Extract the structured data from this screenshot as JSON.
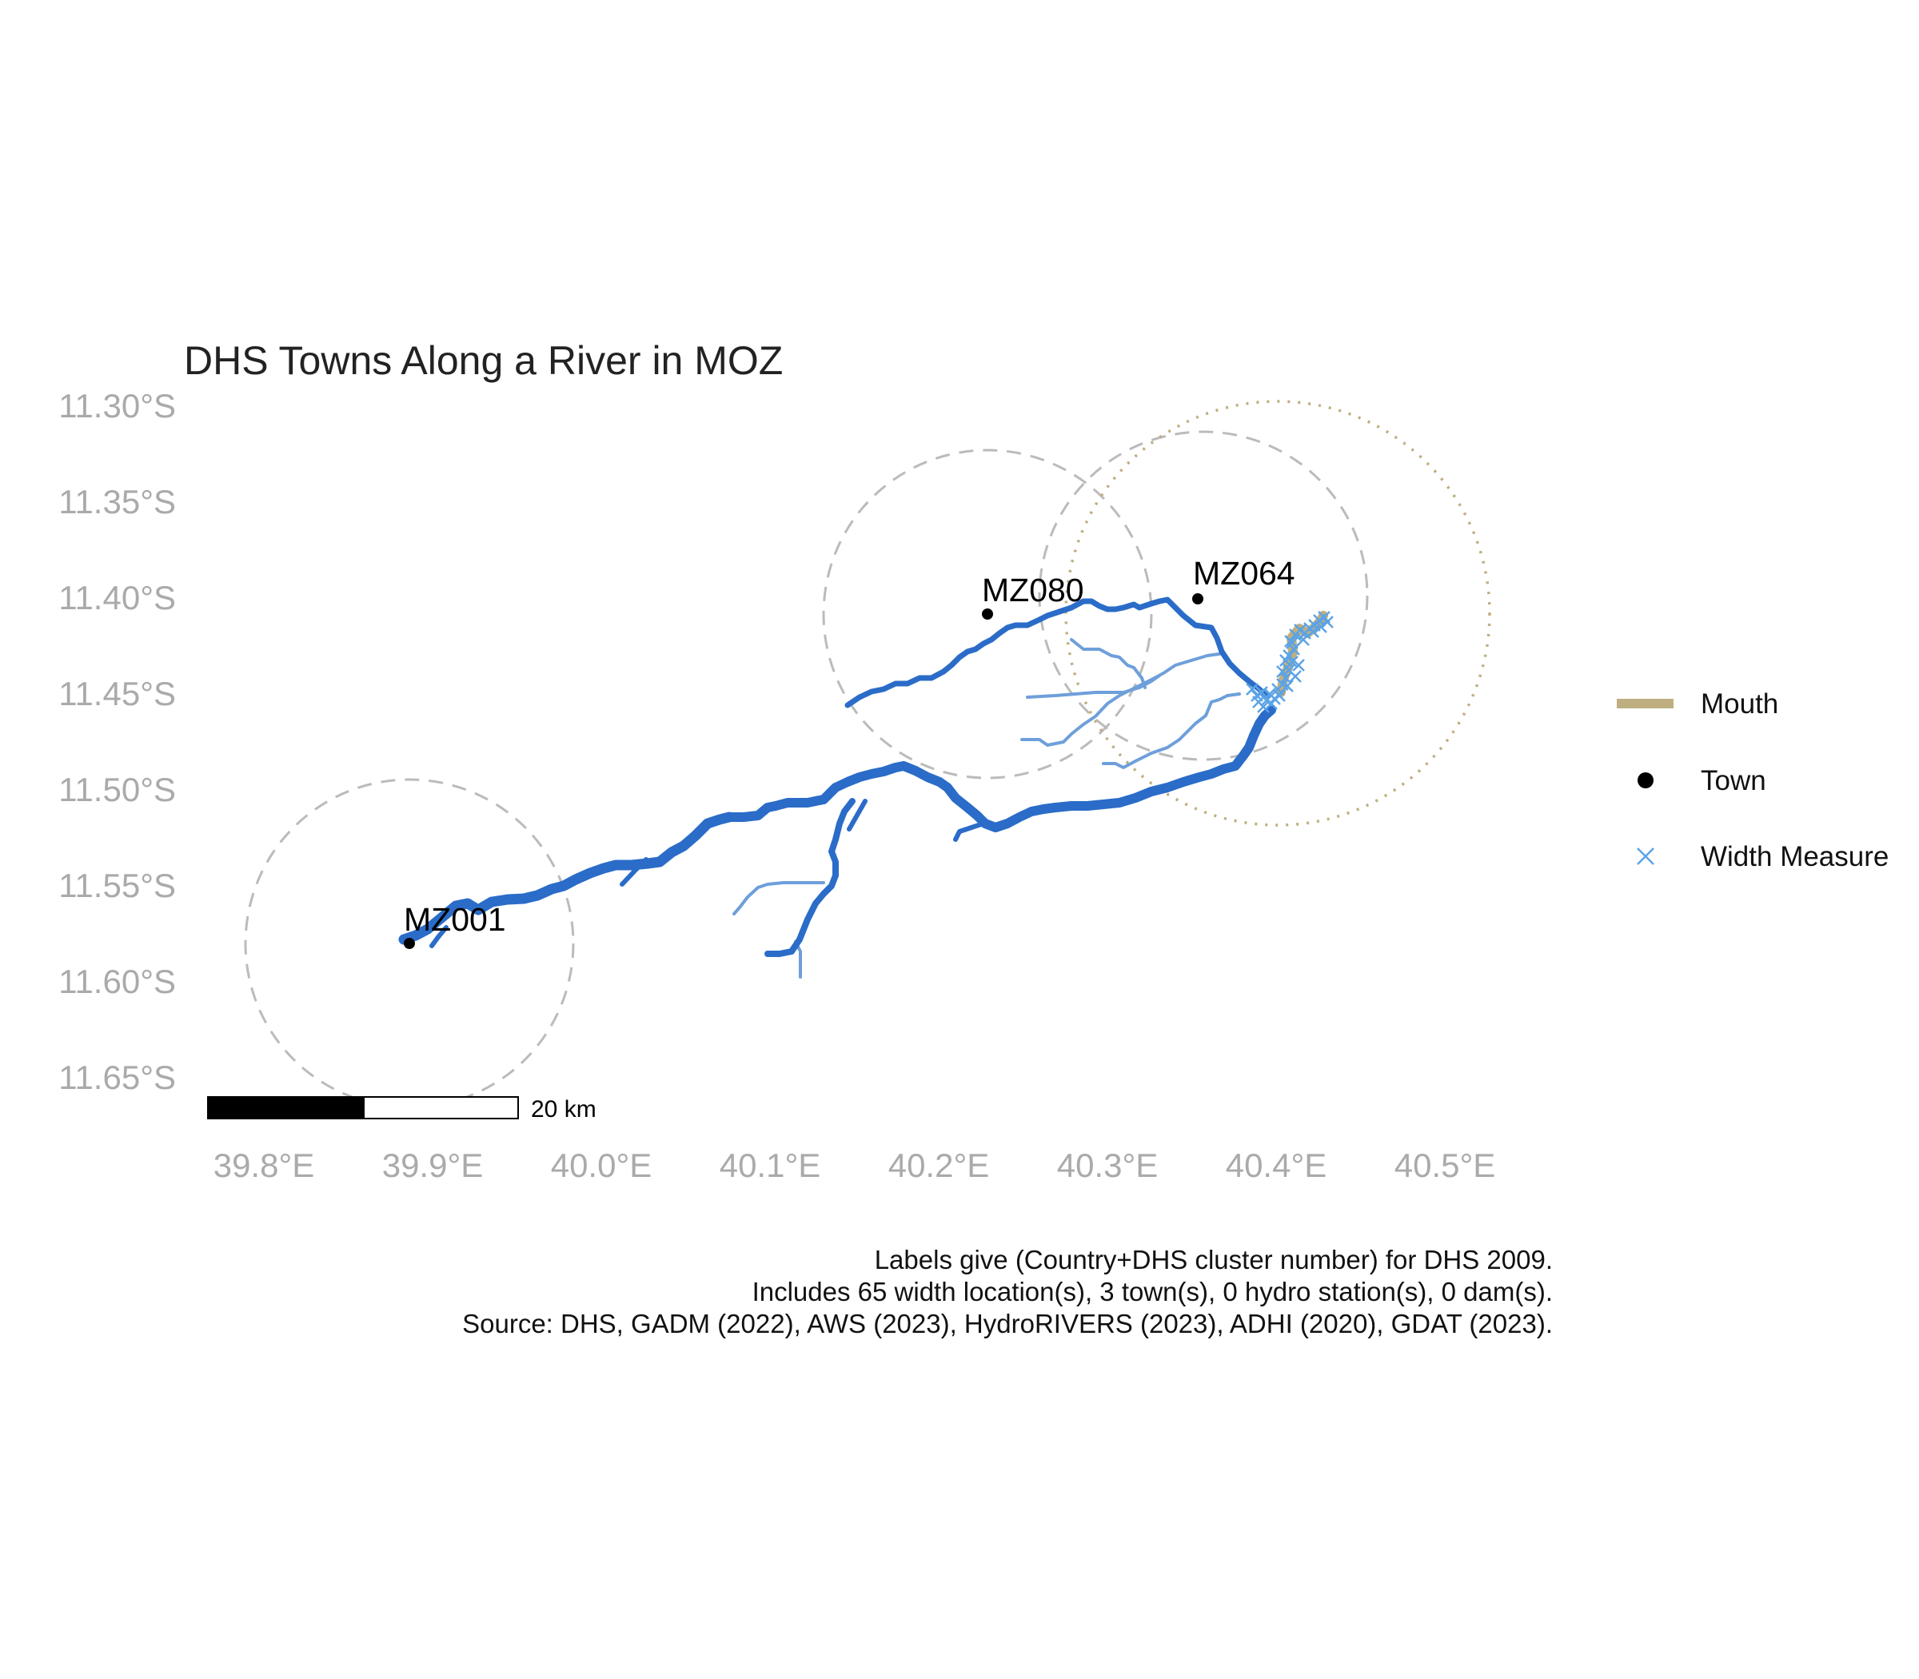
{
  "title": "DHS Towns Along a River in MOZ",
  "axes": {
    "lat_labels": [
      "11.30°S",
      "11.35°S",
      "11.40°S",
      "11.45°S",
      "11.50°S",
      "11.55°S",
      "11.60°S",
      "11.65°S"
    ],
    "lon_labels": [
      "39.8°E",
      "39.9°E",
      "40.0°E",
      "40.1°E",
      "40.2°E",
      "40.3°E",
      "40.4°E",
      "40.5°E"
    ]
  },
  "towns": [
    {
      "label": "MZ001"
    },
    {
      "label": "MZ080"
    },
    {
      "label": "MZ064"
    }
  ],
  "legend": {
    "items": [
      {
        "label": "Mouth",
        "color": "#BFAF80",
        "icon": "mouth-line-icon"
      },
      {
        "label": "Town",
        "color": "#000000",
        "icon": "town-dot-icon"
      },
      {
        "label": "Width Measure",
        "color": "#5BA3E6",
        "icon": "width-cross-icon"
      }
    ]
  },
  "scale_bar": {
    "label": "20 km"
  },
  "caption": [
    "Labels give (Country+DHS cluster number) for DHS 2009.",
    "Includes 65 width location(s), 3 town(s), 0 hydro station(s), 0 dam(s).",
    "Source: DHS, GADM (2022), AWS (2023), HydroRIVERS (2023), ADHI (2020), GDAT (2023)."
  ],
  "colors": {
    "river_main": "#2A6CC8",
    "river_tributary": "#6E9FDA",
    "mouth": "#BFAF80",
    "buffer": "#BBBBBB",
    "width_measure": "#5BA3E6",
    "axis_text": "#AAAAAA"
  }
}
